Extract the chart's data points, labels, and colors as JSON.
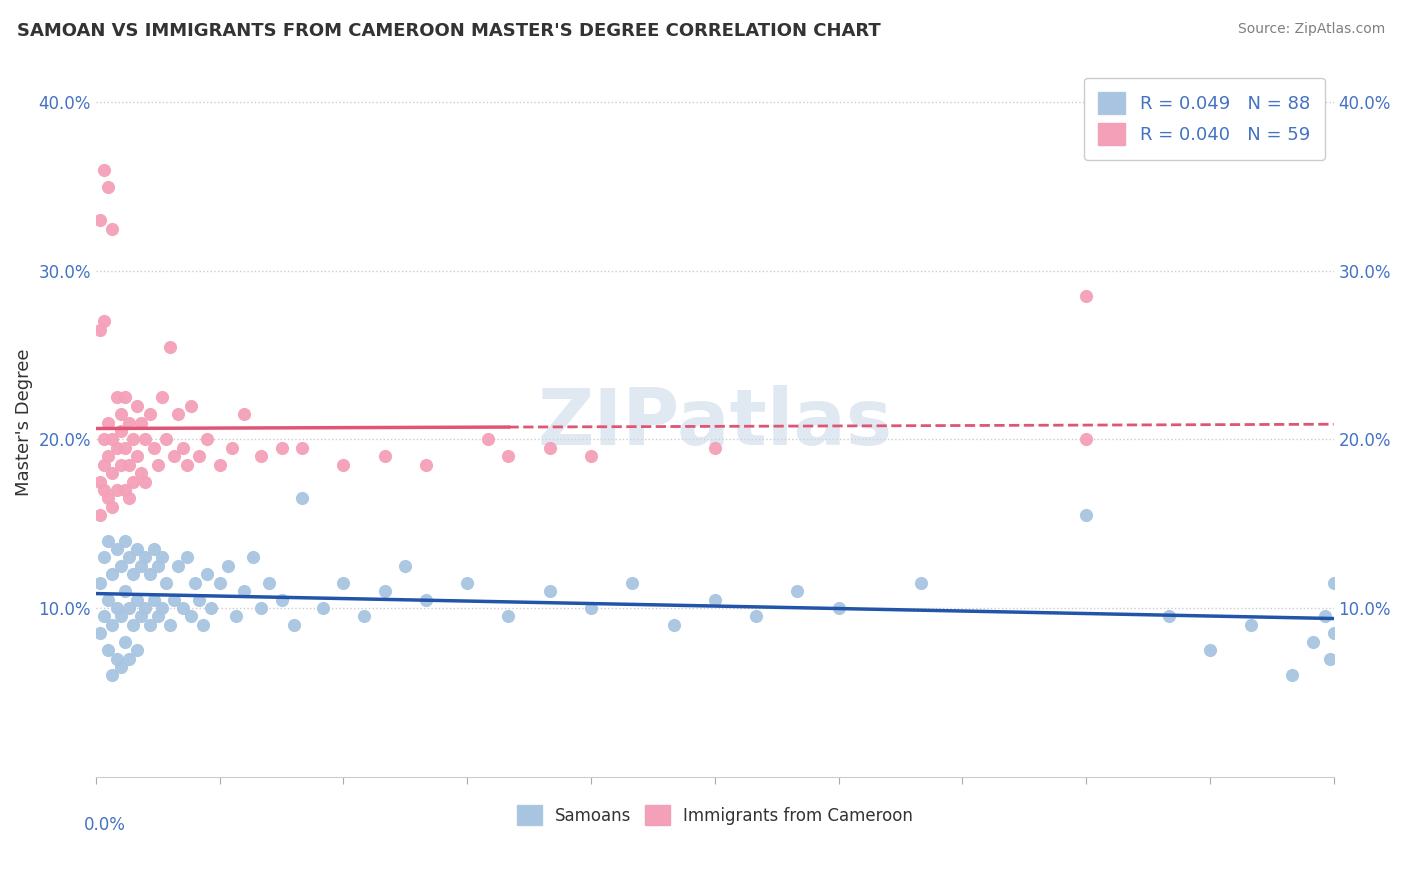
{
  "title": "SAMOAN VS IMMIGRANTS FROM CAMEROON MASTER'S DEGREE CORRELATION CHART",
  "source": "Source: ZipAtlas.com",
  "ylabel": "Master's Degree",
  "xlim": [
    0.0,
    0.3
  ],
  "ylim": [
    0.0,
    0.42
  ],
  "yticks": [
    0.1,
    0.2,
    0.3,
    0.4
  ],
  "ytick_labels": [
    "10.0%",
    "20.0%",
    "30.0%",
    "40.0%"
  ],
  "blue_color": "#a8c4e0",
  "pink_color": "#f4a0b8",
  "blue_line_color": "#2255aa",
  "pink_line_color": "#e05575",
  "samoans_x": [
    0.001,
    0.001,
    0.002,
    0.002,
    0.003,
    0.003,
    0.003,
    0.004,
    0.004,
    0.004,
    0.005,
    0.005,
    0.005,
    0.006,
    0.006,
    0.006,
    0.007,
    0.007,
    0.007,
    0.008,
    0.008,
    0.008,
    0.009,
    0.009,
    0.01,
    0.01,
    0.01,
    0.011,
    0.011,
    0.012,
    0.012,
    0.013,
    0.013,
    0.014,
    0.014,
    0.015,
    0.015,
    0.016,
    0.016,
    0.017,
    0.018,
    0.019,
    0.02,
    0.021,
    0.022,
    0.023,
    0.024,
    0.025,
    0.026,
    0.027,
    0.028,
    0.03,
    0.032,
    0.034,
    0.036,
    0.038,
    0.04,
    0.042,
    0.045,
    0.048,
    0.05,
    0.055,
    0.06,
    0.065,
    0.07,
    0.075,
    0.08,
    0.09,
    0.1,
    0.11,
    0.12,
    0.13,
    0.14,
    0.15,
    0.16,
    0.17,
    0.18,
    0.2,
    0.24,
    0.26,
    0.27,
    0.28,
    0.29,
    0.295,
    0.298,
    0.299,
    0.3,
    0.3
  ],
  "samoans_y": [
    0.115,
    0.085,
    0.13,
    0.095,
    0.14,
    0.105,
    0.075,
    0.12,
    0.09,
    0.06,
    0.135,
    0.1,
    0.07,
    0.125,
    0.095,
    0.065,
    0.14,
    0.11,
    0.08,
    0.13,
    0.1,
    0.07,
    0.12,
    0.09,
    0.135,
    0.105,
    0.075,
    0.125,
    0.095,
    0.13,
    0.1,
    0.12,
    0.09,
    0.135,
    0.105,
    0.125,
    0.095,
    0.13,
    0.1,
    0.115,
    0.09,
    0.105,
    0.125,
    0.1,
    0.13,
    0.095,
    0.115,
    0.105,
    0.09,
    0.12,
    0.1,
    0.115,
    0.125,
    0.095,
    0.11,
    0.13,
    0.1,
    0.115,
    0.105,
    0.09,
    0.165,
    0.1,
    0.115,
    0.095,
    0.11,
    0.125,
    0.105,
    0.115,
    0.095,
    0.11,
    0.1,
    0.115,
    0.09,
    0.105,
    0.095,
    0.11,
    0.1,
    0.115,
    0.155,
    0.095,
    0.075,
    0.09,
    0.06,
    0.08,
    0.095,
    0.07,
    0.085,
    0.115
  ],
  "cameroon_x": [
    0.001,
    0.001,
    0.002,
    0.002,
    0.002,
    0.003,
    0.003,
    0.003,
    0.004,
    0.004,
    0.004,
    0.005,
    0.005,
    0.005,
    0.006,
    0.006,
    0.006,
    0.007,
    0.007,
    0.007,
    0.008,
    0.008,
    0.008,
    0.009,
    0.009,
    0.01,
    0.01,
    0.011,
    0.011,
    0.012,
    0.012,
    0.013,
    0.014,
    0.015,
    0.016,
    0.017,
    0.018,
    0.019,
    0.02,
    0.021,
    0.022,
    0.023,
    0.025,
    0.027,
    0.03,
    0.033,
    0.036,
    0.04,
    0.045,
    0.05,
    0.06,
    0.07,
    0.08,
    0.095,
    0.1,
    0.11,
    0.12,
    0.15,
    0.24
  ],
  "cameroon_y": [
    0.175,
    0.155,
    0.185,
    0.17,
    0.2,
    0.19,
    0.165,
    0.21,
    0.18,
    0.2,
    0.16,
    0.225,
    0.195,
    0.17,
    0.215,
    0.185,
    0.205,
    0.225,
    0.195,
    0.17,
    0.21,
    0.185,
    0.165,
    0.2,
    0.175,
    0.22,
    0.19,
    0.21,
    0.18,
    0.2,
    0.175,
    0.215,
    0.195,
    0.185,
    0.225,
    0.2,
    0.255,
    0.19,
    0.215,
    0.195,
    0.185,
    0.22,
    0.19,
    0.2,
    0.185,
    0.195,
    0.215,
    0.19,
    0.195,
    0.195,
    0.185,
    0.19,
    0.185,
    0.2,
    0.19,
    0.195,
    0.19,
    0.195,
    0.2
  ],
  "cameroon_outliers_x": [
    0.001,
    0.002,
    0.003,
    0.004,
    0.001,
    0.002,
    0.24
  ],
  "cameroon_outliers_y": [
    0.33,
    0.36,
    0.35,
    0.325,
    0.265,
    0.27,
    0.285
  ]
}
